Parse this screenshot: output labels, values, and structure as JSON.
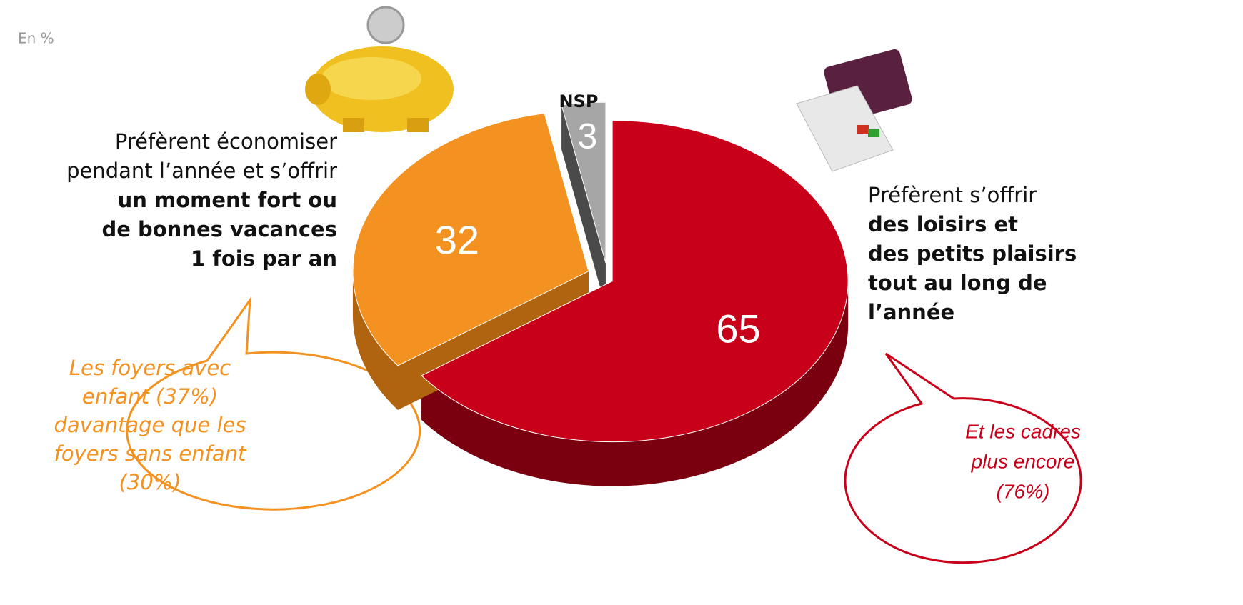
{
  "chart_data": {
    "type": "pie",
    "unit_note": "En %",
    "categories": [
      {
        "normal": [
          "Préfèrent s’offrir"
        ],
        "bold": [
          "des loisirs et",
          "des petits plaisirs",
          "tout au long de",
          "l’année"
        ]
      },
      {
        "normal": [
          "Préfèrent économiser",
          "pendant l’année et s’offrir"
        ],
        "bold": [
          "un moment fort ou",
          "de bonnes vacances",
          "1 fois par an"
        ]
      },
      {
        "bold": [
          "NSP"
        ]
      }
    ],
    "values": [
      65,
      32,
      3
    ],
    "colors": [
      "#c8001a",
      "#f39220",
      "#a6a6a6"
    ],
    "annotations": [
      {
        "lines": [
          "Les foyers avec",
          "enfant (37%)",
          "davantage que les",
          "foyers sans enfant",
          "(30%)"
        ],
        "color": "#f39220"
      },
      {
        "lines": [
          "Et les cadres",
          "plus encore",
          "(76%)"
        ],
        "color": "#c8001a"
      }
    ]
  }
}
